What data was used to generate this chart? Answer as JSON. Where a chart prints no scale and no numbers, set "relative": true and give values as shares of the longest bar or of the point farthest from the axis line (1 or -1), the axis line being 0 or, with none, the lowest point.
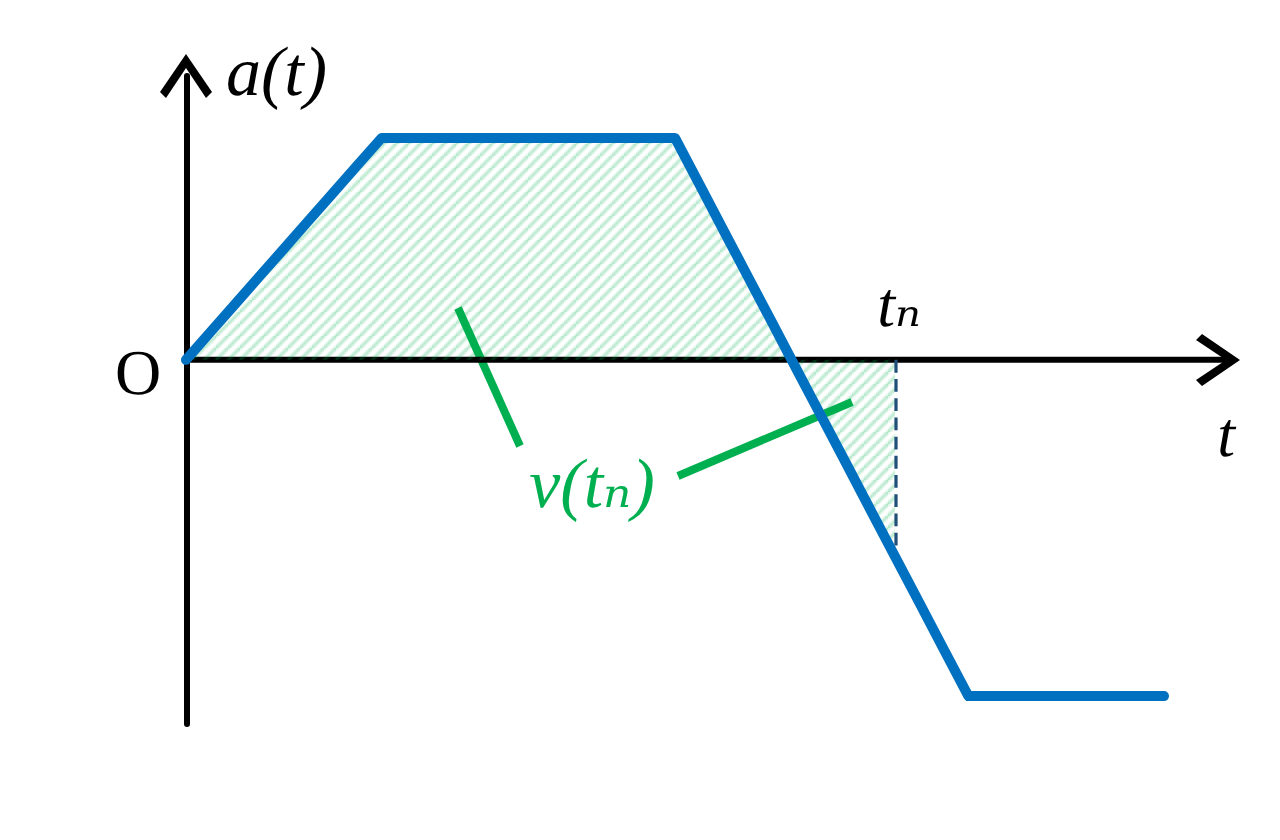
{
  "chart_data": {
    "type": "line",
    "relative": true,
    "xlabel": "t",
    "ylabel": "a(t)",
    "line_style": "solid",
    "categories": [
      null,
      null,
      null,
      null,
      null,
      null,
      null,
      null,
      null,
      null,
      null,
      null,
      null,
      null,
      null,
      null,
      null,
      null,
      null,
      null,
      null,
      null,
      null,
      null,
      null,
      null,
      null,
      null,
      null,
      null,
      null,
      null,
      null,
      null,
      null,
      null,
      null,
      null,
      null,
      null,
      null
    ],
    "series": [
      {
        "color": "#0070c0",
        "values": [
          0,
          0.083,
          0.165,
          0.248,
          0.33,
          0.413,
          0.495,
          0.578,
          0.66,
          0.66,
          0.66,
          0.66,
          0.66,
          0.66,
          0.66,
          0.66,
          0.66,
          0.66,
          0.66,
          0.66,
          0.66,
          0.522,
          0.383,
          0.245,
          0.107,
          -0.032,
          -0.17,
          -0.308,
          -0.447,
          -0.585,
          -0.723,
          -0.862,
          -1,
          -1,
          -1,
          -1,
          -1,
          -1,
          -1,
          -1,
          -1
        ]
      },
      {
        "type": "area",
        "name": "v(tₙ)",
        "color": "#00b050",
        "values": [
          0,
          0.083,
          0.165,
          0.248,
          0.33,
          0.413,
          0.495,
          0.578,
          0.66,
          0.66,
          0.66,
          0.66,
          0.66,
          0.66,
          0.66,
          0.66,
          0.66,
          0.66,
          0.66,
          0.66,
          0.66,
          0.522,
          0.383,
          0.245,
          0.107,
          -0.032,
          -0.17,
          -0.308,
          -0.447,
          -0.585,
          null,
          null,
          null,
          null,
          null,
          null,
          null,
          null,
          null,
          null,
          null
        ]
      }
    ],
    "annotations": [
      "O",
      "tₙ"
    ]
  }
}
